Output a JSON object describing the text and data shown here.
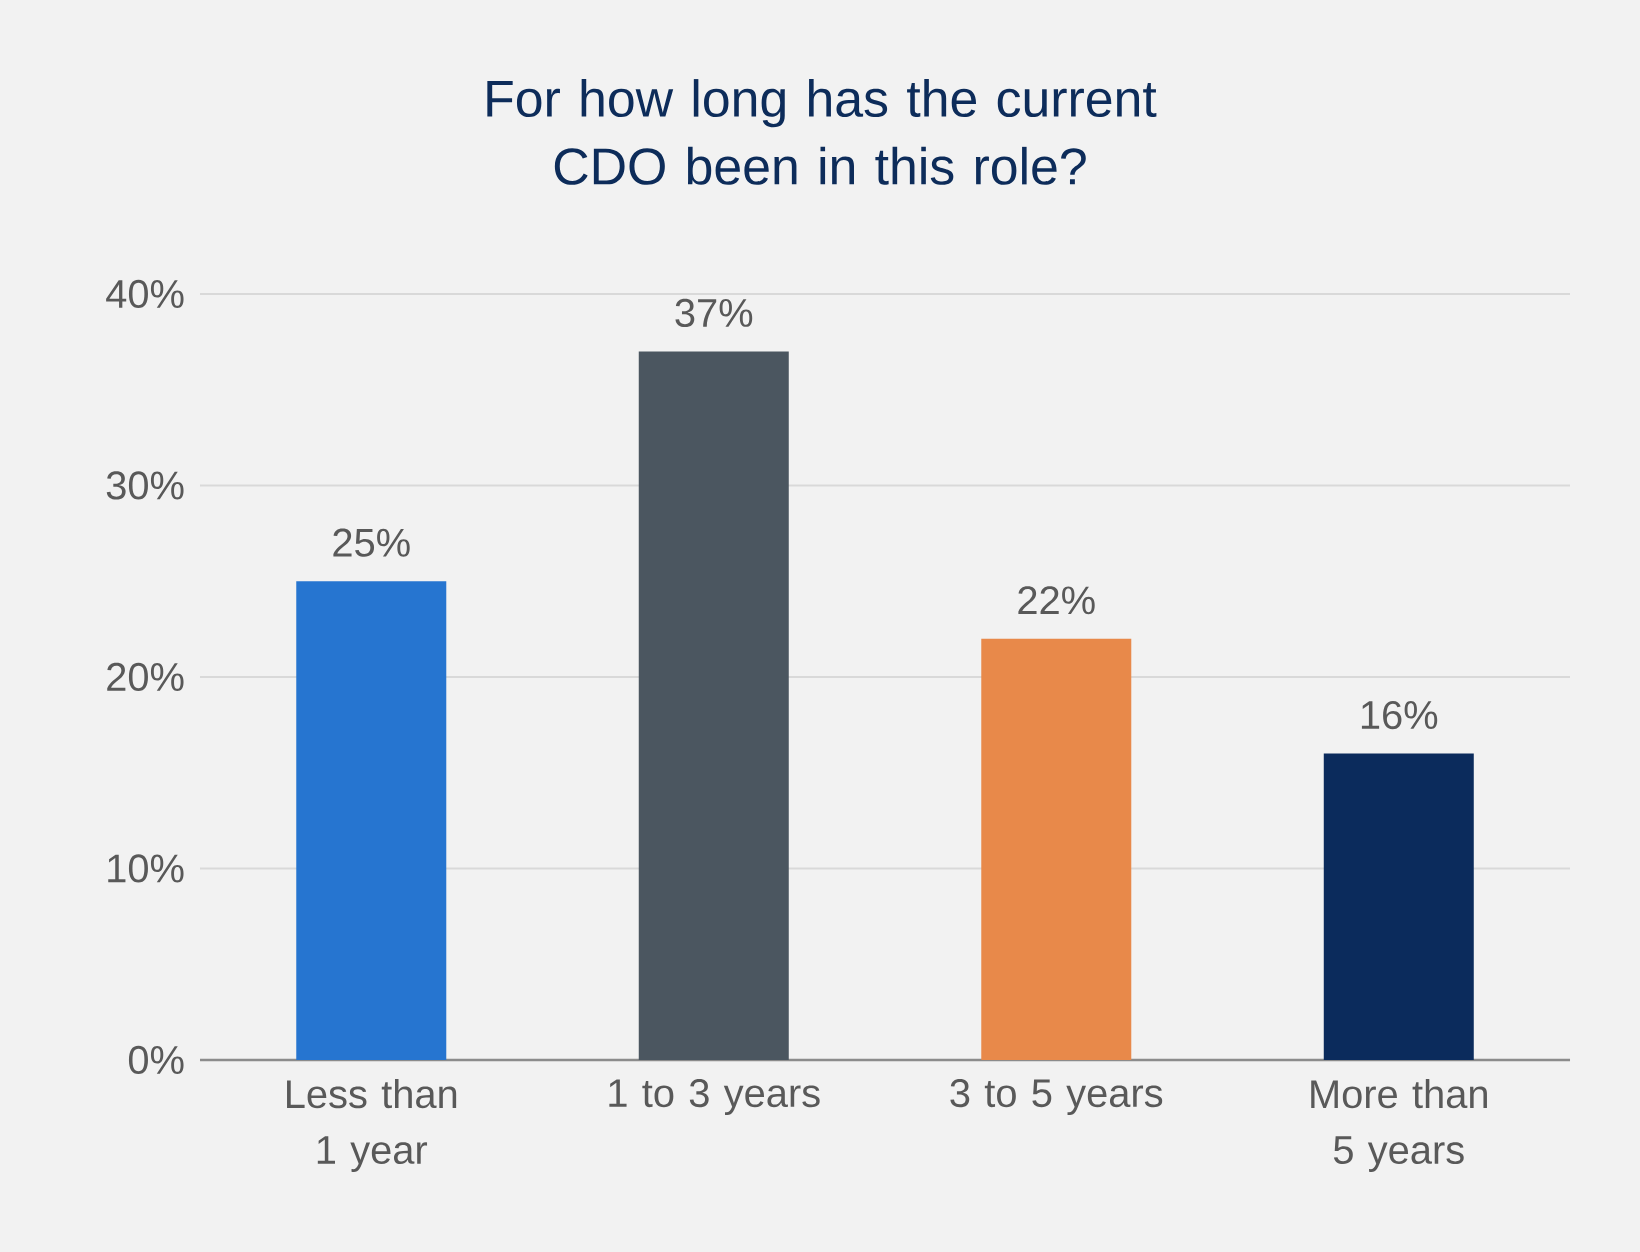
{
  "chart_data": {
    "type": "bar",
    "title": "For how long has the current CDO been in this role?",
    "categories": [
      "Less than 1 year",
      "1 to 3 years",
      "3 to 5 years",
      "More than 5 years"
    ],
    "values": [
      25,
      37,
      22,
      16
    ],
    "colors": [
      "#2675d0",
      "#4b5660",
      "#e8894a",
      "#0b2b5c"
    ],
    "value_labels": [
      "25%",
      "37%",
      "22%",
      "16%"
    ],
    "ylim": [
      0,
      40
    ],
    "yticks": [
      {
        "value": 0,
        "label": "0%"
      },
      {
        "value": 10,
        "label": "10%"
      },
      {
        "value": 20,
        "label": "20%"
      },
      {
        "value": 30,
        "label": "30%"
      },
      {
        "value": 40,
        "label": "40%"
      }
    ],
    "grid": "y"
  }
}
